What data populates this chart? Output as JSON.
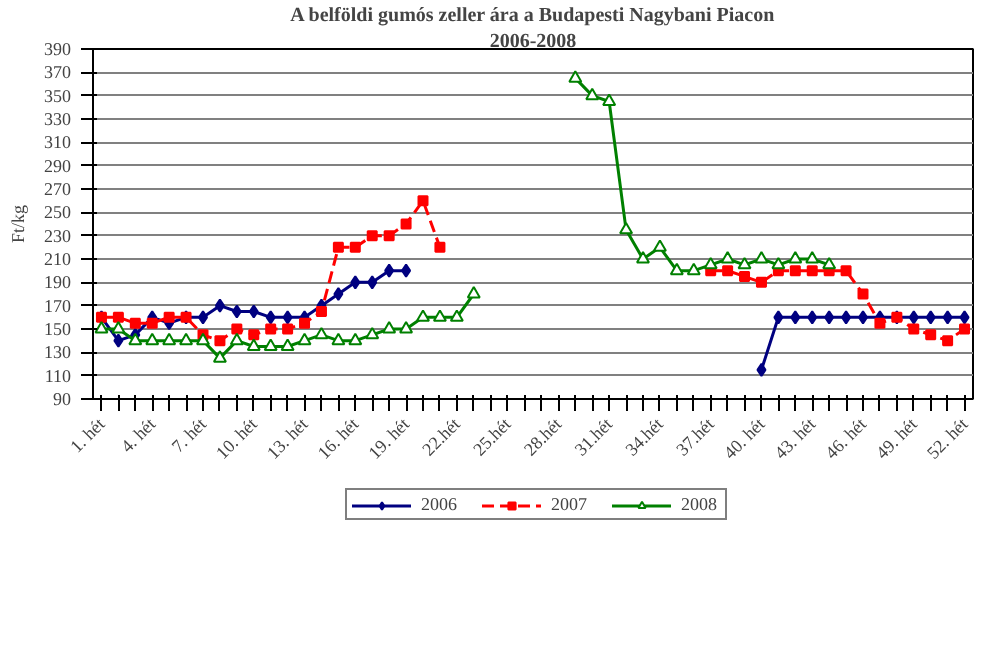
{
  "chart_data": {
    "type": "line",
    "title": "A belföldi gumós zeller ára a Budapesti Nagybani Piacon",
    "subtitle": "2006-2008",
    "ylabel": "Ft/kg",
    "categories": [
      "1. hét",
      null,
      null,
      "4. hét",
      null,
      null,
      "7. hét",
      null,
      null,
      "10. hét",
      null,
      null,
      "13. hét",
      null,
      null,
      "16. hét",
      null,
      null,
      "19. hét",
      null,
      null,
      "22.hét",
      null,
      null,
      "25.hét",
      null,
      null,
      "28.hét",
      null,
      null,
      "31.hét",
      null,
      null,
      "34.hét",
      null,
      null,
      "37.hét",
      null,
      null,
      "40. hét",
      null,
      null,
      "43. hét",
      null,
      null,
      "46. hét",
      null,
      null,
      "49. hét",
      null,
      null,
      "52. hét"
    ],
    "series": [
      {
        "name": "2006",
        "color": "#000080",
        "marker": "diamond",
        "values": [
          160,
          140,
          145,
          160,
          155,
          160,
          160,
          170,
          165,
          165,
          160,
          160,
          160,
          170,
          180,
          190,
          190,
          200,
          200,
          null,
          null,
          null,
          null,
          null,
          null,
          null,
          null,
          null,
          null,
          null,
          null,
          null,
          null,
          null,
          null,
          null,
          null,
          null,
          null,
          115,
          160,
          160,
          160,
          160,
          160,
          160,
          160,
          160,
          160,
          160,
          160,
          160
        ]
      },
      {
        "name": "2007",
        "color": "#ff0000",
        "marker": "square",
        "line_style": "dashed",
        "values": [
          160,
          160,
          155,
          155,
          160,
          160,
          145,
          140,
          150,
          145,
          150,
          150,
          155,
          165,
          220,
          220,
          230,
          230,
          240,
          260,
          220,
          null,
          null,
          null,
          null,
          null,
          null,
          null,
          null,
          null,
          null,
          null,
          null,
          null,
          null,
          null,
          200,
          200,
          195,
          190,
          200,
          200,
          200,
          200,
          200,
          180,
          155,
          160,
          150,
          145,
          140,
          150
        ]
      },
      {
        "name": "2008",
        "color": "#008000",
        "marker": "triangle",
        "values": [
          150,
          150,
          140,
          140,
          140,
          140,
          140,
          125,
          140,
          135,
          135,
          135,
          140,
          145,
          140,
          140,
          145,
          150,
          150,
          160,
          160,
          160,
          180,
          null,
          null,
          null,
          null,
          null,
          365,
          350,
          345,
          235,
          210,
          220,
          200,
          200,
          205,
          210,
          205,
          210,
          205,
          210,
          210,
          205,
          null,
          null,
          null,
          null,
          null,
          null,
          null,
          null
        ]
      }
    ],
    "ylim": [
      90,
      390
    ],
    "yticks": [
      90,
      110,
      130,
      150,
      170,
      190,
      210,
      230,
      250,
      270,
      290,
      310,
      330,
      350,
      370,
      390
    ],
    "grid": "y",
    "legend": "bottom"
  }
}
